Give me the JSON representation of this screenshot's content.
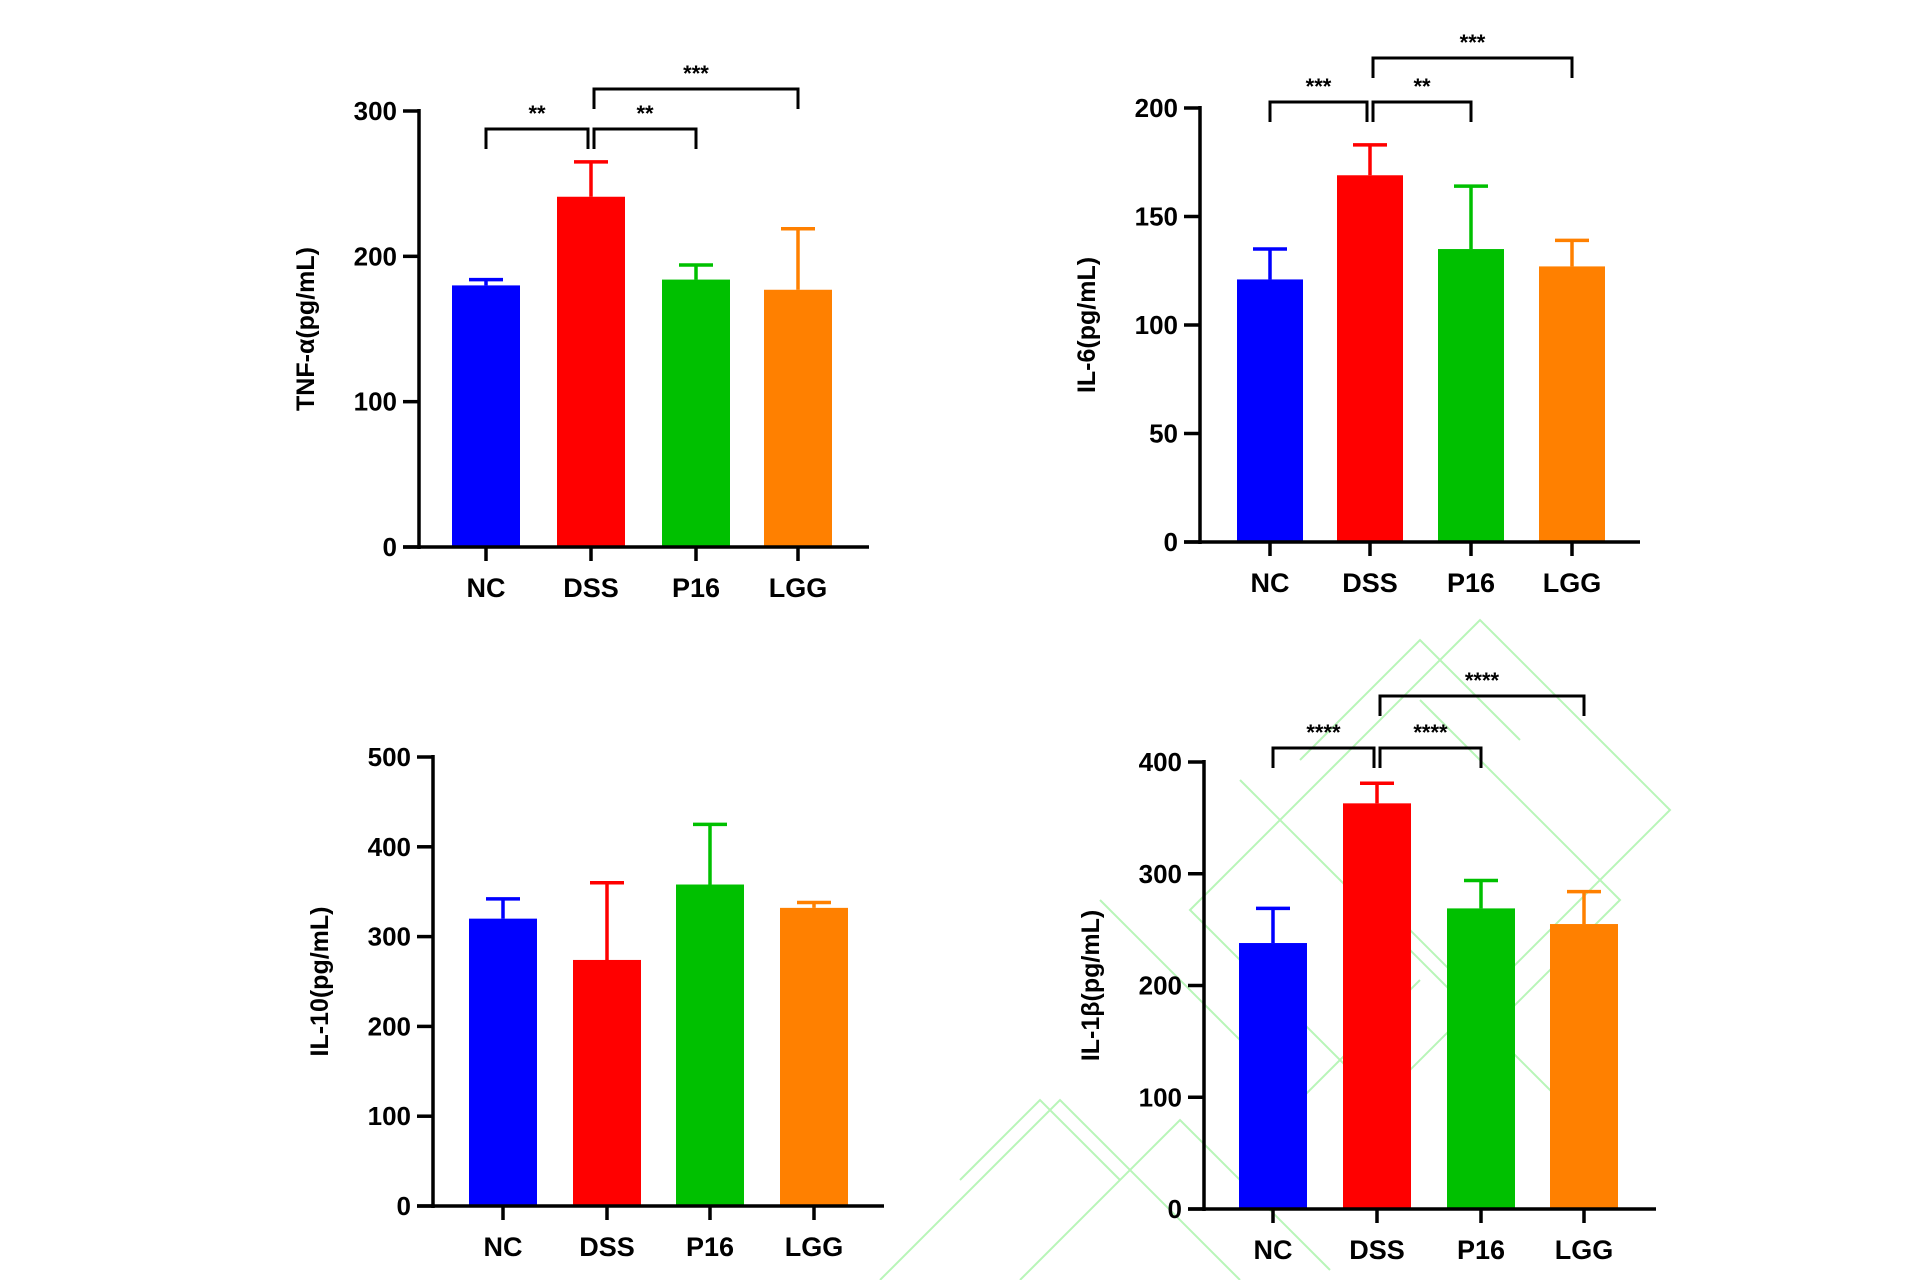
{
  "chart_data": [
    {
      "type": "bar",
      "ylabel": "TNF-α(pg/mL)",
      "categories": [
        "NC",
        "DSS",
        "P16",
        "LGG"
      ],
      "values": [
        180,
        241,
        184,
        177
      ],
      "error_upper": [
        184,
        265,
        194,
        219
      ],
      "ylim": [
        0,
        300
      ],
      "yticks": [
        0,
        100,
        200,
        300
      ],
      "grid": false,
      "comparisons": [
        {
          "from": "NC",
          "to": "DSS",
          "label": "**",
          "level": 1
        },
        {
          "from": "DSS",
          "to": "P16",
          "label": "**",
          "level": 1
        },
        {
          "from": "DSS",
          "to": "LGG",
          "label": "***",
          "level": 2
        }
      ]
    },
    {
      "type": "bar",
      "ylabel": "IL-6(pg/mL)",
      "categories": [
        "NC",
        "DSS",
        "P16",
        "LGG"
      ],
      "values": [
        121,
        169,
        135,
        127
      ],
      "error_upper": [
        135,
        183,
        164,
        139
      ],
      "ylim": [
        0,
        200
      ],
      "yticks": [
        0,
        50,
        100,
        150,
        200
      ],
      "grid": false,
      "comparisons": [
        {
          "from": "NC",
          "to": "DSS",
          "label": "***",
          "level": 1
        },
        {
          "from": "DSS",
          "to": "P16",
          "label": "**",
          "level": 1
        },
        {
          "from": "DSS",
          "to": "LGG",
          "label": "***",
          "level": 2
        }
      ]
    },
    {
      "type": "bar",
      "ylabel": "IL-10(pg/mL)",
      "categories": [
        "NC",
        "DSS",
        "P16",
        "LGG"
      ],
      "values": [
        320,
        274,
        358,
        332
      ],
      "error_upper": [
        342,
        360,
        425,
        338
      ],
      "ylim": [
        0,
        500
      ],
      "yticks": [
        0,
        100,
        200,
        300,
        400,
        500
      ],
      "grid": false,
      "comparisons": []
    },
    {
      "type": "bar",
      "ylabel": "IL-1β(pg/mL)",
      "categories": [
        "NC",
        "DSS",
        "P16",
        "LGG"
      ],
      "values": [
        238,
        363,
        269,
        255
      ],
      "error_upper": [
        269,
        381,
        294,
        284
      ],
      "ylim": [
        0,
        400
      ],
      "yticks": [
        0,
        100,
        200,
        300,
        400
      ],
      "grid": false,
      "comparisons": [
        {
          "from": "NC",
          "to": "DSS",
          "label": "****",
          "level": 1
        },
        {
          "from": "DSS",
          "to": "P16",
          "label": "****",
          "level": 1
        },
        {
          "from": "DSS",
          "to": "LGG",
          "label": "****",
          "level": 2
        }
      ]
    }
  ],
  "colors": {
    "NC": "#0000ff",
    "DSS": "#ff0000",
    "P16": "#00c000",
    "LGG": "#ff8000",
    "axis": "#000000",
    "watermark": "#b8f5b8"
  }
}
